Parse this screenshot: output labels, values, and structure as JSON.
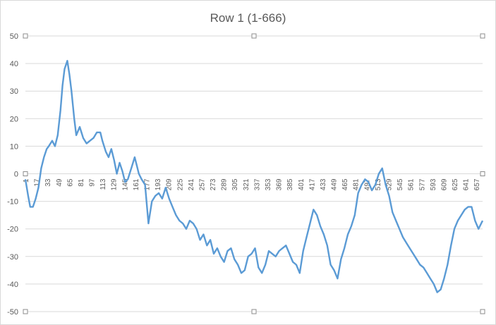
{
  "chart_data": {
    "type": "line",
    "title": "Row 1 (1-666)",
    "xlabel": "",
    "ylabel": "",
    "xlim": [
      1,
      666
    ],
    "ylim": [
      -50,
      50
    ],
    "y_ticks": [
      50,
      40,
      30,
      20,
      10,
      0,
      -10,
      -20,
      -30,
      -40,
      -50
    ],
    "x_tick_labels": [
      "1",
      "17",
      "33",
      "49",
      "65",
      "81",
      "97",
      "113",
      "129",
      "145",
      "161",
      "177",
      "193",
      "209",
      "225",
      "241",
      "257",
      "273",
      "289",
      "305",
      "321",
      "337",
      "353",
      "369",
      "385",
      "401",
      "417",
      "433",
      "449",
      "465",
      "481",
      "497",
      "513",
      "529",
      "545",
      "561",
      "577",
      "593",
      "609",
      "625",
      "641",
      "657"
    ],
    "grid": "horizontal",
    "line_color": "#5b9bd5",
    "series": [
      {
        "x": [
          1,
          5,
          8,
          12,
          16,
          20,
          24,
          28,
          32,
          35,
          40,
          44,
          48,
          52,
          55,
          58,
          62,
          65,
          68,
          72,
          75,
          80,
          85,
          90,
          95,
          100,
          105,
          110,
          113,
          118,
          122,
          126,
          130,
          134,
          138,
          142,
          146,
          150,
          155,
          160,
          163,
          166,
          170,
          175,
          180,
          185,
          190,
          195,
          200,
          205,
          210,
          215,
          220,
          225,
          230,
          235,
          240,
          245,
          250,
          255,
          260,
          265,
          270,
          275,
          280,
          285,
          290,
          295,
          300,
          305,
          310,
          315,
          320,
          325,
          330,
          335,
          340,
          345,
          350,
          355,
          360,
          365,
          370,
          375,
          380,
          385,
          390,
          395,
          400,
          405,
          410,
          415,
          420,
          425,
          430,
          435,
          440,
          445,
          450,
          455,
          460,
          465,
          470,
          475,
          480,
          485,
          490,
          495,
          500,
          505,
          510,
          515,
          520,
          525,
          530,
          535,
          540,
          545,
          550,
          555,
          560,
          565,
          570,
          575,
          580,
          585,
          590,
          595,
          600,
          605,
          610,
          615,
          620,
          625,
          630,
          635,
          640,
          645,
          650,
          655,
          660,
          666
        ],
        "y": [
          -2,
          -8,
          -12,
          -12,
          -9,
          -5,
          2,
          6,
          9,
          10,
          12,
          10,
          14,
          23,
          32,
          38,
          41,
          36,
          30,
          20,
          14,
          17,
          13,
          11,
          12,
          13,
          15,
          15,
          12,
          8,
          6,
          9,
          5,
          0,
          4,
          1,
          -3,
          -2,
          2,
          6,
          3,
          0,
          -2,
          -4,
          -18,
          -10,
          -8,
          -7,
          -9,
          -5,
          -9,
          -12,
          -15,
          -17,
          -18,
          -20,
          -17,
          -18,
          -20,
          -24,
          -22,
          -26,
          -24,
          -29,
          -27,
          -30,
          -32,
          -28,
          -27,
          -31,
          -33,
          -36,
          -35,
          -30,
          -29,
          -27,
          -34,
          -36,
          -33,
          -28,
          -29,
          -30,
          -28,
          -27,
          -26,
          -29,
          -32,
          -33,
          -36,
          -28,
          -23,
          -18,
          -13,
          -15,
          -19,
          -22,
          -26,
          -33,
          -35,
          -38,
          -31,
          -27,
          -22,
          -19,
          -15,
          -7,
          -4,
          -2,
          -3,
          -6,
          -4,
          0,
          2,
          -4,
          -8,
          -14,
          -17,
          -20,
          -23,
          -25,
          -27,
          -29,
          -31,
          -33,
          -34,
          -36,
          -38,
          -40,
          -43,
          -42,
          -38,
          -33,
          -26,
          -20,
          -17,
          -15,
          -13,
          -12,
          -12,
          -17,
          -20,
          -17
        ]
      }
    ]
  }
}
